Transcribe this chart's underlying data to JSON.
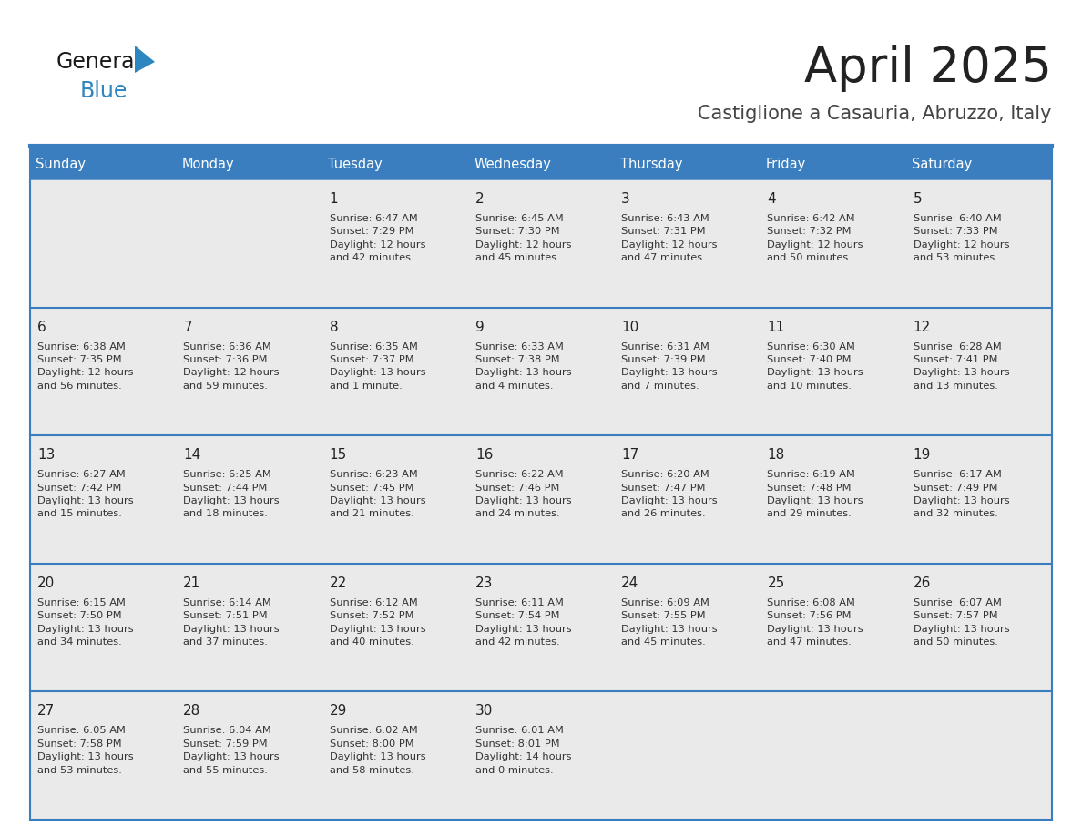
{
  "title": "April 2025",
  "subtitle": "Castiglione a Casauria, Abruzzo, Italy",
  "header_bg": "#3A7EBF",
  "header_text": "#FFFFFF",
  "cell_bg_light": "#EAEAEA",
  "cell_bg_white": "#FFFFFF",
  "divider_color": "#3A7EBF",
  "text_dark": "#222222",
  "text_medium": "#444444",
  "text_cell": "#333333",
  "day_names": [
    "Sunday",
    "Monday",
    "Tuesday",
    "Wednesday",
    "Thursday",
    "Friday",
    "Saturday"
  ],
  "weeks": [
    [
      {
        "day": "",
        "info": ""
      },
      {
        "day": "",
        "info": ""
      },
      {
        "day": "1",
        "info": "Sunrise: 6:47 AM\nSunset: 7:29 PM\nDaylight: 12 hours\nand 42 minutes."
      },
      {
        "day": "2",
        "info": "Sunrise: 6:45 AM\nSunset: 7:30 PM\nDaylight: 12 hours\nand 45 minutes."
      },
      {
        "day": "3",
        "info": "Sunrise: 6:43 AM\nSunset: 7:31 PM\nDaylight: 12 hours\nand 47 minutes."
      },
      {
        "day": "4",
        "info": "Sunrise: 6:42 AM\nSunset: 7:32 PM\nDaylight: 12 hours\nand 50 minutes."
      },
      {
        "day": "5",
        "info": "Sunrise: 6:40 AM\nSunset: 7:33 PM\nDaylight: 12 hours\nand 53 minutes."
      }
    ],
    [
      {
        "day": "6",
        "info": "Sunrise: 6:38 AM\nSunset: 7:35 PM\nDaylight: 12 hours\nand 56 minutes."
      },
      {
        "day": "7",
        "info": "Sunrise: 6:36 AM\nSunset: 7:36 PM\nDaylight: 12 hours\nand 59 minutes."
      },
      {
        "day": "8",
        "info": "Sunrise: 6:35 AM\nSunset: 7:37 PM\nDaylight: 13 hours\nand 1 minute."
      },
      {
        "day": "9",
        "info": "Sunrise: 6:33 AM\nSunset: 7:38 PM\nDaylight: 13 hours\nand 4 minutes."
      },
      {
        "day": "10",
        "info": "Sunrise: 6:31 AM\nSunset: 7:39 PM\nDaylight: 13 hours\nand 7 minutes."
      },
      {
        "day": "11",
        "info": "Sunrise: 6:30 AM\nSunset: 7:40 PM\nDaylight: 13 hours\nand 10 minutes."
      },
      {
        "day": "12",
        "info": "Sunrise: 6:28 AM\nSunset: 7:41 PM\nDaylight: 13 hours\nand 13 minutes."
      }
    ],
    [
      {
        "day": "13",
        "info": "Sunrise: 6:27 AM\nSunset: 7:42 PM\nDaylight: 13 hours\nand 15 minutes."
      },
      {
        "day": "14",
        "info": "Sunrise: 6:25 AM\nSunset: 7:44 PM\nDaylight: 13 hours\nand 18 minutes."
      },
      {
        "day": "15",
        "info": "Sunrise: 6:23 AM\nSunset: 7:45 PM\nDaylight: 13 hours\nand 21 minutes."
      },
      {
        "day": "16",
        "info": "Sunrise: 6:22 AM\nSunset: 7:46 PM\nDaylight: 13 hours\nand 24 minutes."
      },
      {
        "day": "17",
        "info": "Sunrise: 6:20 AM\nSunset: 7:47 PM\nDaylight: 13 hours\nand 26 minutes."
      },
      {
        "day": "18",
        "info": "Sunrise: 6:19 AM\nSunset: 7:48 PM\nDaylight: 13 hours\nand 29 minutes."
      },
      {
        "day": "19",
        "info": "Sunrise: 6:17 AM\nSunset: 7:49 PM\nDaylight: 13 hours\nand 32 minutes."
      }
    ],
    [
      {
        "day": "20",
        "info": "Sunrise: 6:15 AM\nSunset: 7:50 PM\nDaylight: 13 hours\nand 34 minutes."
      },
      {
        "day": "21",
        "info": "Sunrise: 6:14 AM\nSunset: 7:51 PM\nDaylight: 13 hours\nand 37 minutes."
      },
      {
        "day": "22",
        "info": "Sunrise: 6:12 AM\nSunset: 7:52 PM\nDaylight: 13 hours\nand 40 minutes."
      },
      {
        "day": "23",
        "info": "Sunrise: 6:11 AM\nSunset: 7:54 PM\nDaylight: 13 hours\nand 42 minutes."
      },
      {
        "day": "24",
        "info": "Sunrise: 6:09 AM\nSunset: 7:55 PM\nDaylight: 13 hours\nand 45 minutes."
      },
      {
        "day": "25",
        "info": "Sunrise: 6:08 AM\nSunset: 7:56 PM\nDaylight: 13 hours\nand 47 minutes."
      },
      {
        "day": "26",
        "info": "Sunrise: 6:07 AM\nSunset: 7:57 PM\nDaylight: 13 hours\nand 50 minutes."
      }
    ],
    [
      {
        "day": "27",
        "info": "Sunrise: 6:05 AM\nSunset: 7:58 PM\nDaylight: 13 hours\nand 53 minutes."
      },
      {
        "day": "28",
        "info": "Sunrise: 6:04 AM\nSunset: 7:59 PM\nDaylight: 13 hours\nand 55 minutes."
      },
      {
        "day": "29",
        "info": "Sunrise: 6:02 AM\nSunset: 8:00 PM\nDaylight: 13 hours\nand 58 minutes."
      },
      {
        "day": "30",
        "info": "Sunrise: 6:01 AM\nSunset: 8:01 PM\nDaylight: 14 hours\nand 0 minutes."
      },
      {
        "day": "",
        "info": ""
      },
      {
        "day": "",
        "info": ""
      },
      {
        "day": "",
        "info": ""
      }
    ]
  ],
  "logo_general_color": "#1A1A1A",
  "logo_blue_color": "#2E86C1",
  "logo_triangle_color": "#2E86C1"
}
